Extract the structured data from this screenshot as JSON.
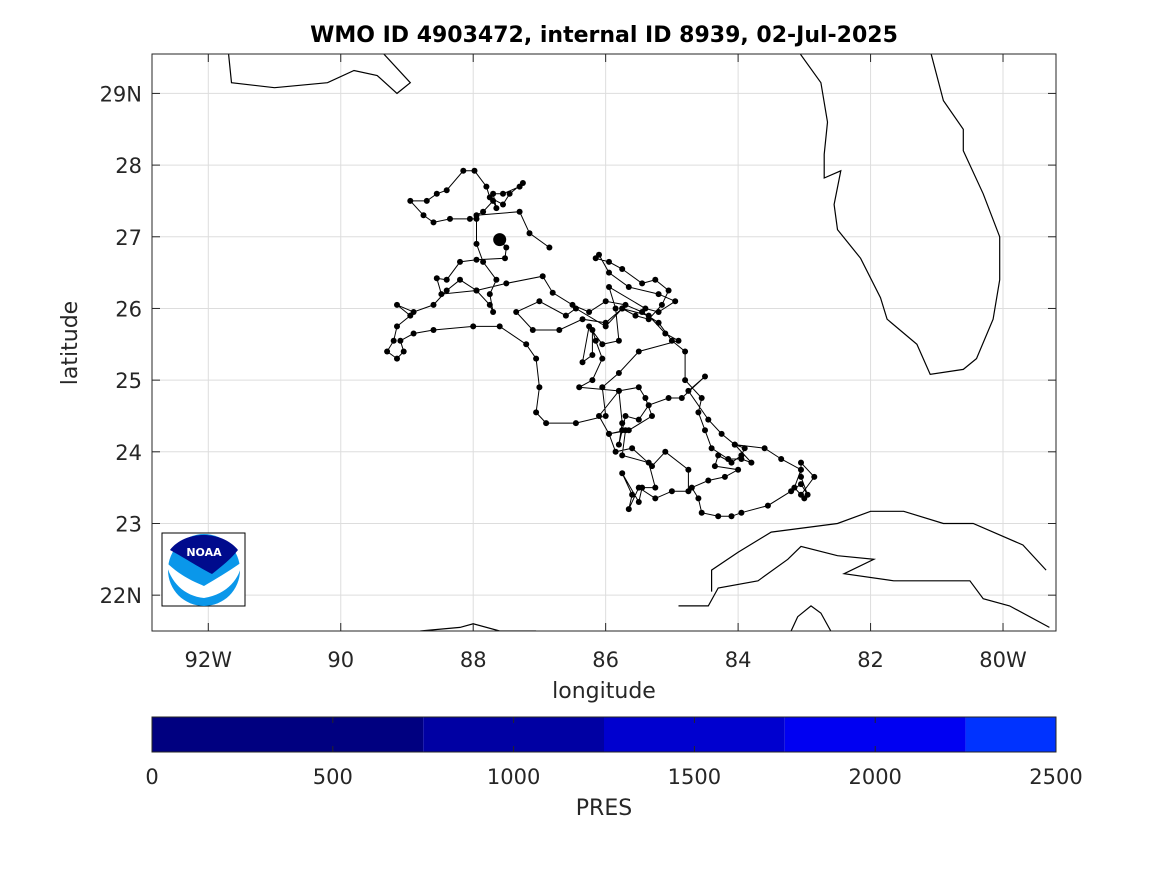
{
  "title": "WMO ID 4903472, internal ID 8939, 02-Jul-2025",
  "map": {
    "xlabel": "longitude",
    "ylabel": "latitude",
    "lon_range": [
      -92.85,
      -79.2
    ],
    "lat_range": [
      21.5,
      29.55
    ],
    "x_ticks": [
      {
        "value": -92,
        "label": "92W"
      },
      {
        "value": -90,
        "label": "90"
      },
      {
        "value": -88,
        "label": "88"
      },
      {
        "value": -86,
        "label": "86"
      },
      {
        "value": -84,
        "label": "84"
      },
      {
        "value": -82,
        "label": "82"
      },
      {
        "value": -80,
        "label": "80W"
      }
    ],
    "y_ticks": [
      {
        "value": 22,
        "label": "22N"
      },
      {
        "value": 23,
        "label": "23"
      },
      {
        "value": 24,
        "label": "24"
      },
      {
        "value": 25,
        "label": "25"
      },
      {
        "value": 26,
        "label": "26"
      },
      {
        "value": 27,
        "label": "27"
      },
      {
        "value": 28,
        "label": "28"
      },
      {
        "value": 29,
        "label": "29N"
      }
    ],
    "grid": true,
    "deployment": [
      -87.6,
      26.96
    ],
    "track": [
      [
        -87.6,
        26.96
      ],
      [
        -87.5,
        26.85
      ],
      [
        -87.52,
        26.7
      ],
      [
        -87.95,
        26.68
      ],
      [
        -88.2,
        26.65
      ],
      [
        -88.4,
        26.4
      ],
      [
        -88.55,
        26.42
      ],
      [
        -88.48,
        26.2
      ],
      [
        -87.95,
        26.25
      ],
      [
        -87.5,
        26.35
      ],
      [
        -86.95,
        26.45
      ],
      [
        -86.8,
        26.22
      ],
      [
        -86.5,
        26.05
      ],
      [
        -86.25,
        25.95
      ],
      [
        -86.0,
        26.1
      ],
      [
        -85.7,
        26.05
      ],
      [
        -85.45,
        25.95
      ],
      [
        -85.2,
        25.8
      ],
      [
        -85.0,
        25.55
      ],
      [
        -84.8,
        25.4
      ],
      [
        -84.8,
        25.0
      ],
      [
        -84.55,
        24.75
      ],
      [
        -84.6,
        24.55
      ],
      [
        -84.5,
        24.3
      ],
      [
        -84.4,
        24.05
      ],
      [
        -84.15,
        23.9
      ],
      [
        -83.95,
        23.9
      ],
      [
        -83.8,
        23.85
      ],
      [
        -84.05,
        24.1
      ],
      [
        -83.9,
        24.05
      ],
      [
        -83.95,
        23.95
      ],
      [
        -84.1,
        23.85
      ],
      [
        -84.3,
        23.95
      ],
      [
        -84.35,
        23.8
      ],
      [
        -84.0,
        23.75
      ],
      [
        -84.2,
        23.65
      ],
      [
        -84.45,
        23.6
      ],
      [
        -84.7,
        23.5
      ],
      [
        -84.6,
        23.35
      ],
      [
        -84.55,
        23.15
      ],
      [
        -84.3,
        23.1
      ],
      [
        -84.1,
        23.1
      ],
      [
        -83.95,
        23.15
      ],
      [
        -83.55,
        23.25
      ],
      [
        -83.2,
        23.45
      ],
      [
        -83.05,
        23.55
      ],
      [
        -82.95,
        23.4
      ],
      [
        -83.05,
        23.65
      ],
      [
        -83.05,
        23.85
      ],
      [
        -82.85,
        23.65
      ],
      [
        -83.05,
        23.4
      ],
      [
        -83.0,
        23.35
      ],
      [
        -83.15,
        23.5
      ],
      [
        -83.05,
        23.75
      ],
      [
        -83.35,
        23.9
      ],
      [
        -83.6,
        24.05
      ],
      [
        -84.05,
        24.1
      ],
      [
        -84.25,
        24.25
      ],
      [
        -84.45,
        24.45
      ],
      [
        -84.75,
        24.85
      ],
      [
        -84.5,
        25.05
      ],
      [
        -84.85,
        24.75
      ],
      [
        -85.05,
        24.75
      ],
      [
        -85.35,
        24.65
      ],
      [
        -85.5,
        24.45
      ],
      [
        -85.7,
        24.5
      ],
      [
        -85.75,
        24.3
      ],
      [
        -85.8,
        24.1
      ],
      [
        -85.75,
        24.4
      ],
      [
        -85.8,
        24.85
      ],
      [
        -85.5,
        24.9
      ],
      [
        -85.4,
        24.75
      ],
      [
        -85.3,
        24.5
      ],
      [
        -85.65,
        24.3
      ],
      [
        -85.95,
        24.25
      ],
      [
        -85.85,
        24.0
      ],
      [
        -85.6,
        24.05
      ],
      [
        -85.3,
        23.8
      ],
      [
        -85.1,
        24.0
      ],
      [
        -84.75,
        23.75
      ],
      [
        -84.75,
        23.45
      ],
      [
        -85.0,
        23.45
      ],
      [
        -85.25,
        23.35
      ],
      [
        -85.5,
        23.5
      ],
      [
        -85.65,
        23.2
      ],
      [
        -85.6,
        23.4
      ],
      [
        -85.75,
        23.7
      ],
      [
        -85.5,
        23.3
      ],
      [
        -85.45,
        23.5
      ],
      [
        -85.25,
        23.5
      ],
      [
        -85.35,
        23.85
      ],
      [
        -85.75,
        23.95
      ],
      [
        -85.7,
        24.3
      ],
      [
        -85.95,
        24.25
      ],
      [
        -86.1,
        24.5
      ],
      [
        -85.8,
        24.85
      ],
      [
        -86.4,
        24.9
      ],
      [
        -86.2,
        25.0
      ],
      [
        -86.05,
        25.3
      ],
      [
        -86.15,
        25.55
      ],
      [
        -86.2,
        25.7
      ],
      [
        -86.2,
        25.35
      ],
      [
        -86.35,
        25.25
      ],
      [
        -86.25,
        25.75
      ],
      [
        -86.05,
        25.5
      ],
      [
        -85.8,
        25.55
      ],
      [
        -85.85,
        26.0
      ],
      [
        -85.95,
        26.3
      ],
      [
        -85.4,
        26.0
      ],
      [
        -85.2,
        25.95
      ],
      [
        -84.95,
        26.1
      ],
      [
        -85.2,
        26.2
      ],
      [
        -85.65,
        26.3
      ],
      [
        -85.95,
        26.5
      ],
      [
        -86.1,
        26.75
      ],
      [
        -86.15,
        26.7
      ],
      [
        -85.95,
        26.65
      ],
      [
        -85.75,
        26.55
      ],
      [
        -85.45,
        26.35
      ],
      [
        -85.25,
        26.4
      ],
      [
        -85.05,
        26.25
      ],
      [
        -85.15,
        26.05
      ],
      [
        -85.35,
        25.85
      ],
      [
        -85.55,
        25.9
      ],
      [
        -85.75,
        26.0
      ],
      [
        -86.0,
        25.8
      ],
      [
        -86.35,
        25.85
      ],
      [
        -86.7,
        25.7
      ],
      [
        -87.1,
        25.7
      ],
      [
        -87.35,
        25.95
      ],
      [
        -87.0,
        26.1
      ],
      [
        -86.6,
        25.9
      ],
      [
        -86.45,
        26.0
      ],
      [
        -86.0,
        25.75
      ],
      [
        -85.75,
        26.0
      ],
      [
        -85.35,
        25.9
      ],
      [
        -85.1,
        25.65
      ],
      [
        -84.9,
        25.55
      ],
      [
        -85.5,
        25.4
      ],
      [
        -85.8,
        25.1
      ],
      [
        -86.05,
        24.9
      ],
      [
        -86.0,
        24.5
      ],
      [
        -86.45,
        24.4
      ],
      [
        -86.9,
        24.4
      ],
      [
        -87.05,
        24.55
      ],
      [
        -87.0,
        24.9
      ],
      [
        -87.05,
        25.3
      ],
      [
        -87.2,
        25.5
      ],
      [
        -87.6,
        25.75
      ],
      [
        -88.0,
        25.75
      ],
      [
        -88.6,
        25.7
      ],
      [
        -88.9,
        25.65
      ],
      [
        -89.1,
        25.55
      ],
      [
        -89.05,
        25.4
      ],
      [
        -89.15,
        25.3
      ],
      [
        -89.3,
        25.4
      ],
      [
        -89.2,
        25.55
      ],
      [
        -89.15,
        25.75
      ],
      [
        -88.95,
        25.9
      ],
      [
        -89.15,
        26.05
      ],
      [
        -88.9,
        25.95
      ],
      [
        -88.6,
        26.05
      ],
      [
        -88.4,
        26.25
      ],
      [
        -88.2,
        26.4
      ],
      [
        -87.95,
        26.25
      ],
      [
        -87.75,
        26.05
      ],
      [
        -87.7,
        25.95
      ],
      [
        -87.75,
        26.2
      ],
      [
        -87.65,
        26.4
      ],
      [
        -87.85,
        26.65
      ],
      [
        -87.95,
        26.9
      ],
      [
        -87.95,
        27.25
      ],
      [
        -88.05,
        27.25
      ],
      [
        -88.35,
        27.25
      ],
      [
        -88.6,
        27.2
      ],
      [
        -88.75,
        27.3
      ],
      [
        -88.95,
        27.5
      ],
      [
        -88.7,
        27.5
      ],
      [
        -88.55,
        27.6
      ],
      [
        -88.4,
        27.65
      ],
      [
        -88.15,
        27.92
      ],
      [
        -87.98,
        27.92
      ],
      [
        -87.8,
        27.7
      ],
      [
        -87.75,
        27.55
      ],
      [
        -87.55,
        27.45
      ],
      [
        -87.45,
        27.6
      ],
      [
        -87.25,
        27.75
      ],
      [
        -87.3,
        27.7
      ],
      [
        -87.55,
        27.6
      ],
      [
        -87.7,
        27.6
      ],
      [
        -87.65,
        27.4
      ],
      [
        -87.7,
        27.5
      ],
      [
        -87.85,
        27.35
      ],
      [
        -87.95,
        27.3
      ],
      [
        -87.3,
        27.35
      ],
      [
        -87.15,
        27.05
      ],
      [
        -86.85,
        26.85
      ]
    ],
    "coastlines": [
      [
        [
          -91.7,
          29.6
        ],
        [
          -91.65,
          29.15
        ],
        [
          -91.0,
          29.08
        ],
        [
          -90.2,
          29.15
        ],
        [
          -89.8,
          29.32
        ],
        [
          -89.45,
          29.25
        ],
        [
          -89.15,
          29.0
        ],
        [
          -88.95,
          29.15
        ],
        [
          -89.4,
          29.6
        ]
      ],
      [
        [
          -83.1,
          29.6
        ],
        [
          -82.75,
          29.15
        ],
        [
          -82.65,
          28.6
        ],
        [
          -82.7,
          28.15
        ],
        [
          -82.7,
          27.82
        ],
        [
          -82.45,
          27.92
        ],
        [
          -82.55,
          27.45
        ],
        [
          -82.5,
          27.1
        ],
        [
          -82.15,
          26.7
        ],
        [
          -81.85,
          26.15
        ],
        [
          -81.75,
          25.85
        ],
        [
          -81.3,
          25.5
        ],
        [
          -81.1,
          25.08
        ],
        [
          -80.6,
          25.15
        ],
        [
          -80.4,
          25.3
        ],
        [
          -80.15,
          25.85
        ],
        [
          -80.05,
          26.4
        ],
        [
          -80.05,
          27.0
        ],
        [
          -80.3,
          27.6
        ],
        [
          -80.6,
          28.2
        ],
        [
          -80.6,
          28.5
        ],
        [
          -80.9,
          28.9
        ],
        [
          -81.1,
          29.6
        ]
      ],
      [
        [
          -84.9,
          21.85
        ],
        [
          -84.45,
          21.85
        ],
        [
          -84.3,
          22.1
        ],
        [
          -83.7,
          22.2
        ],
        [
          -83.25,
          22.5
        ],
        [
          -83.05,
          22.68
        ],
        [
          -82.5,
          22.55
        ],
        [
          -81.95,
          22.5
        ],
        [
          -82.4,
          22.3
        ],
        [
          -81.65,
          22.2
        ],
        [
          -80.5,
          22.2
        ],
        [
          -80.3,
          21.95
        ],
        [
          -79.9,
          21.85
        ],
        [
          -79.3,
          21.55
        ]
      ],
      [
        [
          -84.4,
          22.05
        ],
        [
          -84.4,
          22.35
        ],
        [
          -84.0,
          22.6
        ],
        [
          -83.5,
          22.88
        ],
        [
          -82.5,
          23.0
        ],
        [
          -82.0,
          23.17
        ],
        [
          -81.5,
          23.17
        ],
        [
          -80.9,
          23.0
        ],
        [
          -80.45,
          23.0
        ],
        [
          -79.7,
          22.7
        ],
        [
          -79.35,
          22.35
        ]
      ],
      [
        [
          -83.2,
          21.5
        ],
        [
          -83.1,
          21.7
        ],
        [
          -82.9,
          21.85
        ],
        [
          -82.75,
          21.75
        ],
        [
          -82.6,
          21.5
        ]
      ],
      [
        [
          -88.8,
          21.5
        ],
        [
          -88.2,
          21.55
        ],
        [
          -88.0,
          21.6
        ],
        [
          -87.6,
          21.5
        ],
        [
          -87.05,
          21.5
        ]
      ]
    ]
  },
  "logo": {
    "text": "NOAA",
    "colors": {
      "top": "#000b8d",
      "bottom": "#0a97ea"
    }
  },
  "colorbar": {
    "label": "PRES",
    "ticks": [
      "0",
      "500",
      "1000",
      "1500",
      "2000",
      "2500"
    ],
    "range": [
      0,
      2500
    ],
    "segments": [
      {
        "from": 0,
        "to": 750,
        "color": "#000080"
      },
      {
        "from": 750,
        "to": 1250,
        "color": "#0000a3"
      },
      {
        "from": 1250,
        "to": 1750,
        "color": "#0000cf"
      },
      {
        "from": 1750,
        "to": 2250,
        "color": "#0000f2"
      },
      {
        "from": 2250,
        "to": 2500,
        "color": "#0033ff"
      }
    ]
  }
}
